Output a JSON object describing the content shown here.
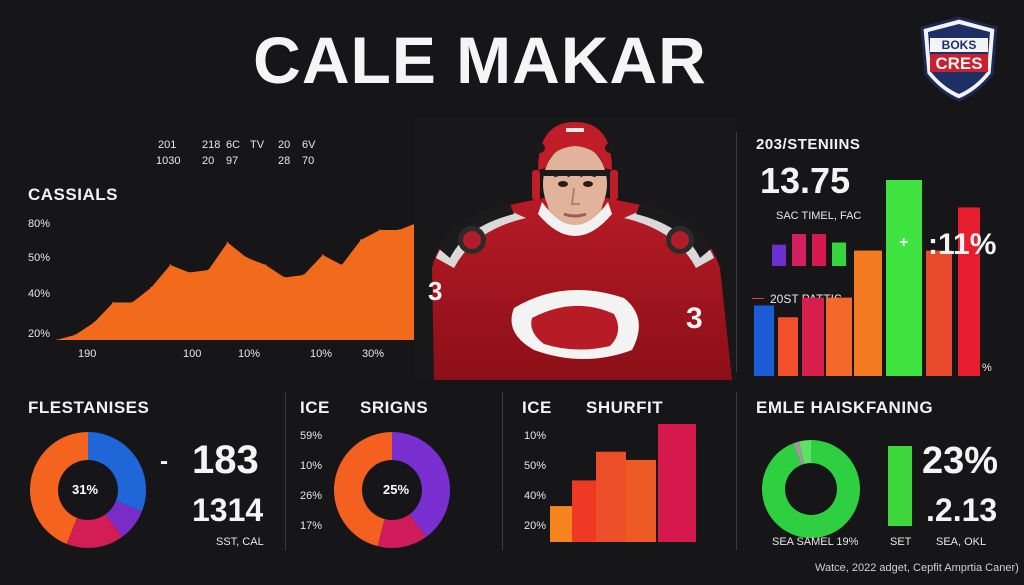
{
  "title": "CALE MAKAR",
  "logo": {
    "text_top": "BOKS",
    "text_main": "CRES"
  },
  "top_table": {
    "row1": [
      "201",
      "218",
      "6C",
      "TV",
      "20",
      "6V"
    ],
    "row2": [
      "1030",
      "20",
      "97",
      "28",
      "70"
    ]
  },
  "area_chart": {
    "label": "CASSIALS",
    "y_ticks": [
      "80%",
      "50%",
      "40%",
      "20%"
    ],
    "x_ticks": [
      "190",
      "100",
      "10%",
      "10%",
      "30%"
    ],
    "color": "#f26b1d"
  },
  "right_top": {
    "header": "203/STENIINS",
    "big_value": "13.75",
    "sub_label": "SAC TIMEL, FAC",
    "mid_label": "20ST PATTIS",
    "pct_value": ":11%",
    "pct_marker": "+",
    "small_pct": "%"
  },
  "panels": {
    "p1": {
      "header": "FLESTANISES",
      "center": "31%",
      "dash": "-",
      "big1": "183",
      "big2": "1314",
      "foot": "SST, CAL"
    },
    "p2": {
      "header_a": "ICE",
      "header_b": "SRIGNS",
      "center": "25%",
      "ticks": [
        "59%",
        "10%",
        "26%",
        "17%"
      ]
    },
    "p3": {
      "header_a": "ICE",
      "header_b": "SHURFIT",
      "ticks": [
        "10%",
        "50%",
        "40%",
        "20%"
      ]
    },
    "p4": {
      "header": "EMLE HAISKFANING",
      "big1": "23%",
      "big2": ".2.13",
      "foot_a": "SEA SAMEL 19%",
      "foot_b": "SET",
      "foot_c": "SEA, OKL"
    }
  },
  "watermark": "Watce, 2022 adget, Cepfit Amprtia Caner)",
  "chart_data": [
    {
      "type": "area",
      "title": "CASSIALS",
      "x": [
        0,
        1,
        2,
        3,
        4,
        5,
        6,
        7,
        8,
        9,
        10,
        11,
        12,
        13,
        14,
        15,
        16,
        17,
        18,
        19
      ],
      "values": [
        20,
        22,
        27,
        35,
        35,
        41,
        50,
        47,
        48,
        59,
        53,
        50,
        45,
        46,
        54,
        50,
        60,
        64,
        64,
        67
      ],
      "ylim": [
        20,
        80
      ]
    },
    {
      "type": "bar",
      "title": "203/STENIINS",
      "categories": [
        "a",
        "b",
        "c",
        "d"
      ],
      "values": [
        20,
        30,
        30,
        22
      ],
      "colors": [
        "#6e2fd1",
        "#d21f5e",
        "#d8194d",
        "#35d63c"
      ]
    },
    {
      "type": "bar",
      "title": "20ST PATTIS",
      "categories": [
        "1",
        "2",
        "3",
        "4",
        "5",
        "6",
        "7",
        "8",
        "9"
      ],
      "values": [
        36,
        30,
        40,
        40,
        64,
        100,
        64,
        40,
        86
      ],
      "colors": [
        "#1d5bd6",
        "#f2502a",
        "#d81f4b",
        "#f5682b",
        "#f47a22",
        "#3ee340",
        "#e84a2c",
        "#d0183d",
        "#e81d2f"
      ]
    },
    {
      "type": "pie",
      "title": "FLESTANISES",
      "labels": [
        "blue",
        "purple",
        "crimson",
        "orange"
      ],
      "values": [
        31,
        9,
        16,
        44
      ],
      "colors": [
        "#1f67d8",
        "#7a2cc8",
        "#d21d55",
        "#f5641f"
      ]
    },
    {
      "type": "pie",
      "title": "ICE SRIGNS",
      "labels": [
        "purple",
        "crimson",
        "orange"
      ],
      "values": [
        40,
        14,
        46
      ],
      "colors": [
        "#7a2fd0",
        "#d01c5a",
        "#f3601f"
      ]
    },
    {
      "type": "bar",
      "title": "ICE SHURFIT",
      "categories": [
        "1",
        "2",
        "3",
        "4",
        "5",
        "6"
      ],
      "values": [
        35,
        60,
        88,
        80,
        60,
        115
      ],
      "colors": [
        "#f5841f",
        "#ee3a24",
        "#ec4e2a",
        "#ee5a23",
        "#e8263a",
        "#d5194c"
      ]
    },
    {
      "type": "pie",
      "title": "EMLE HAISKFANING",
      "labels": [
        "green",
        "gray",
        "green2"
      ],
      "values": [
        94,
        2,
        4
      ],
      "colors": [
        "#2fcf42",
        "#9a9a9a",
        "#5de35f"
      ]
    }
  ]
}
